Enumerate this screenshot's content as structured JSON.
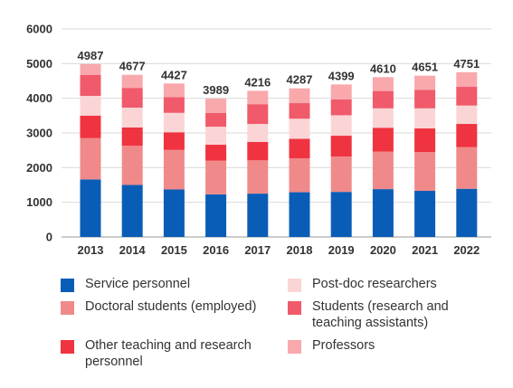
{
  "chart_data": {
    "type": "bar",
    "stacked": true,
    "categories": [
      "2013",
      "2014",
      "2015",
      "2016",
      "2017",
      "2018",
      "2019",
      "2020",
      "2021",
      "2022"
    ],
    "totals": [
      4987,
      4677,
      4427,
      3989,
      4216,
      4287,
      4399,
      4610,
      4651,
      4751
    ],
    "ylim": [
      0,
      6000
    ],
    "yticks": [
      0,
      1000,
      2000,
      3000,
      4000,
      5000,
      6000
    ],
    "grid": true,
    "legend_position": "bottom",
    "series": [
      {
        "name": "Service personnel",
        "color": "#0a5db7",
        "values": [
          1660,
          1500,
          1370,
          1230,
          1250,
          1290,
          1300,
          1380,
          1330,
          1390
        ]
      },
      {
        "name": "Doctoral students (employed)",
        "color": "#f08a8a",
        "values": [
          1190,
          1130,
          1140,
          970,
          960,
          980,
          1020,
          1080,
          1120,
          1200
        ]
      },
      {
        "name": "Other teaching and research personnel",
        "color": "#ef3340",
        "values": [
          650,
          530,
          510,
          460,
          530,
          560,
          600,
          690,
          680,
          670
        ]
      },
      {
        "name": "Post-doc researchers",
        "color": "#fbd5d5",
        "values": [
          570,
          570,
          560,
          520,
          520,
          580,
          590,
          560,
          580,
          530
        ]
      },
      {
        "name": "Students (research and teaching assistants)",
        "color": "#f05a6a",
        "values": [
          600,
          570,
          450,
          400,
          570,
          450,
          460,
          500,
          530,
          540
        ]
      },
      {
        "name": "Professors",
        "color": "#f9a8ac",
        "values": [
          317,
          377,
          397,
          409,
          386,
          427,
          429,
          400,
          411,
          421
        ]
      }
    ]
  }
}
